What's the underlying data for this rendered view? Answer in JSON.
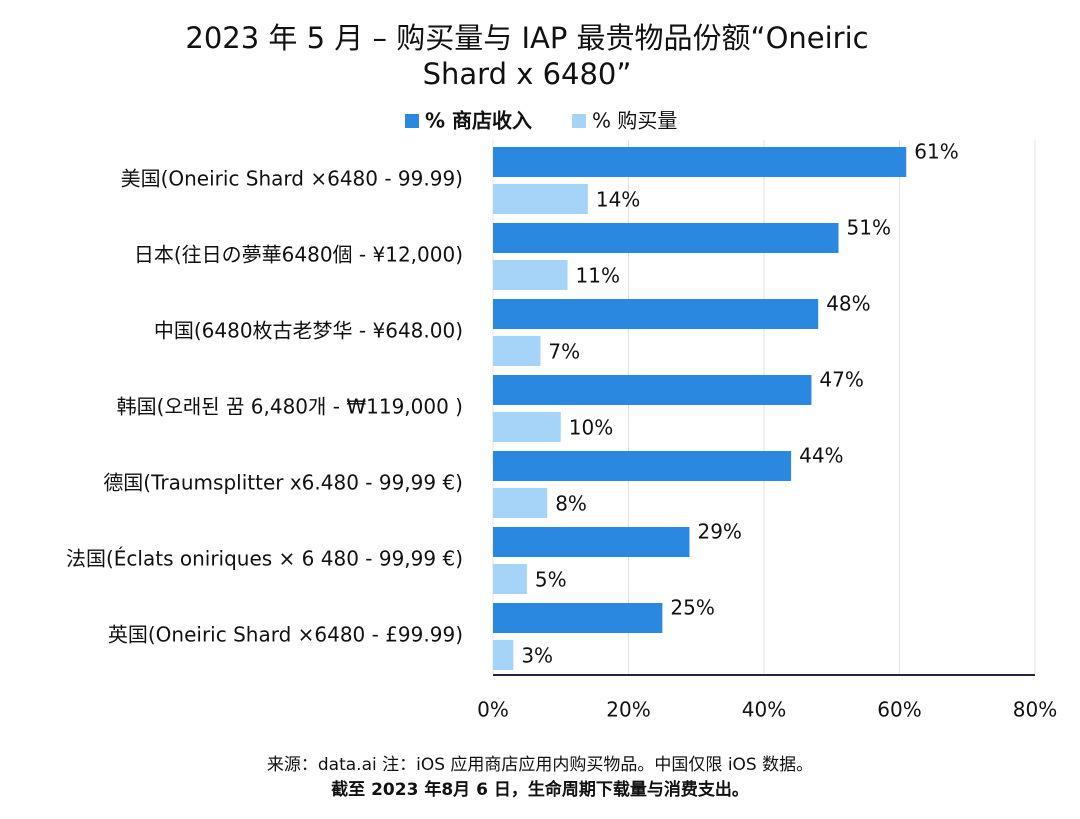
{
  "chart_data": {
    "type": "hbar",
    "title": "2023 年 5 月 – 购买量与 IAP 最贵物品份额“Oneiric Shard x 6480”",
    "categories": [
      "美国(Oneiric Shard ×6480 - 99.99)",
      "日本(往日の夢華6480個 - ¥12,000)",
      "中国(6480枚古老梦华 - ¥648.00)",
      "韩国(오래된 꿈 6,480개 - ₩119,000 )",
      "德国(Traumsplitter x6.480 - 99,99 €)",
      "法国(Éclats oniriques × 6 480 - 99,99 €)",
      "英国(Oneiric Shard ×6480 - £99.99)"
    ],
    "series": [
      {
        "name": "% 商店收入",
        "color": "#2b88e0",
        "values": [
          61,
          51,
          48,
          47,
          44,
          29,
          25
        ],
        "value_labels": [
          "61%",
          "51%",
          "48%",
          "47%",
          "44%",
          "29%",
          "25%"
        ]
      },
      {
        "name": "% 购买量",
        "color": "#a6d3f8",
        "values": [
          14,
          11,
          7,
          10,
          8,
          5,
          3
        ],
        "value_labels": [
          "14%",
          "11%",
          "7%",
          "10%",
          "8%",
          "5%",
          "3%"
        ]
      }
    ],
    "xlim": [
      0,
      80
    ],
    "xticks": [
      {
        "value": 0,
        "label": "0%"
      },
      {
        "value": 20,
        "label": "20%"
      },
      {
        "value": 40,
        "label": "40%"
      },
      {
        "value": 60,
        "label": "60%"
      },
      {
        "value": 80,
        "label": "80%"
      }
    ],
    "grid": true,
    "legend": "top",
    "footnotes": [
      "来源：data.ai 注：iOS 应用商店应用内购买物品。中国仅限 iOS 数据。",
      "截至 2023 年8月 6 日，生命周期下载量与消费支出。"
    ]
  }
}
